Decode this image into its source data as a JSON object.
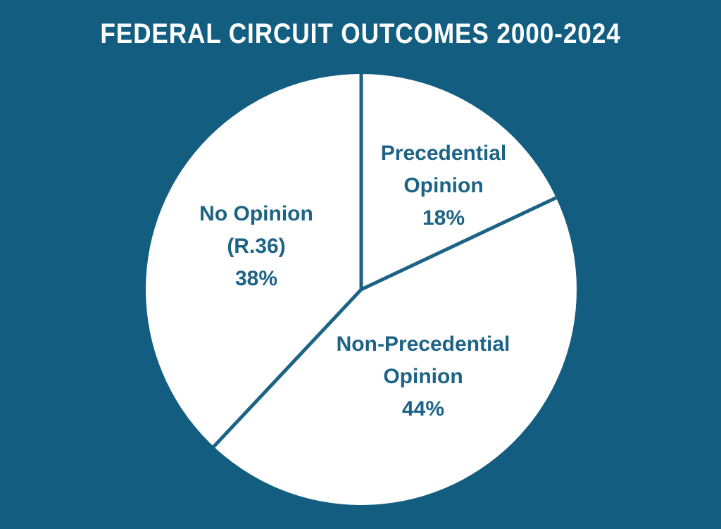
{
  "title": "FEDERAL CIRCUIT OUTCOMES 2000-2024",
  "colors": {
    "background": "#135E80",
    "accent": "#1C6386",
    "pie_fill": "#FFFFFF",
    "title_color": "#FFFFFF"
  },
  "chart_data": {
    "type": "pie",
    "title": "FEDERAL CIRCUIT OUTCOMES 2000-2024",
    "start_angle_deg": 0,
    "direction": "clockwise",
    "legend_position": "none",
    "labels_inside_slices": true,
    "slices": [
      {
        "label": "Precedential Opinion",
        "label_lines": [
          "Precedential",
          "Opinion"
        ],
        "value": 18,
        "percent_label": "18%"
      },
      {
        "label": "Non-Precedential Opinion",
        "label_lines": [
          "Non-Precedential",
          "Opinion"
        ],
        "value": 44,
        "percent_label": "44%"
      },
      {
        "label": "No Opinion (R.36)",
        "label_lines": [
          "No Opinion",
          "(R.36)"
        ],
        "value": 38,
        "percent_label": "38%"
      }
    ]
  }
}
